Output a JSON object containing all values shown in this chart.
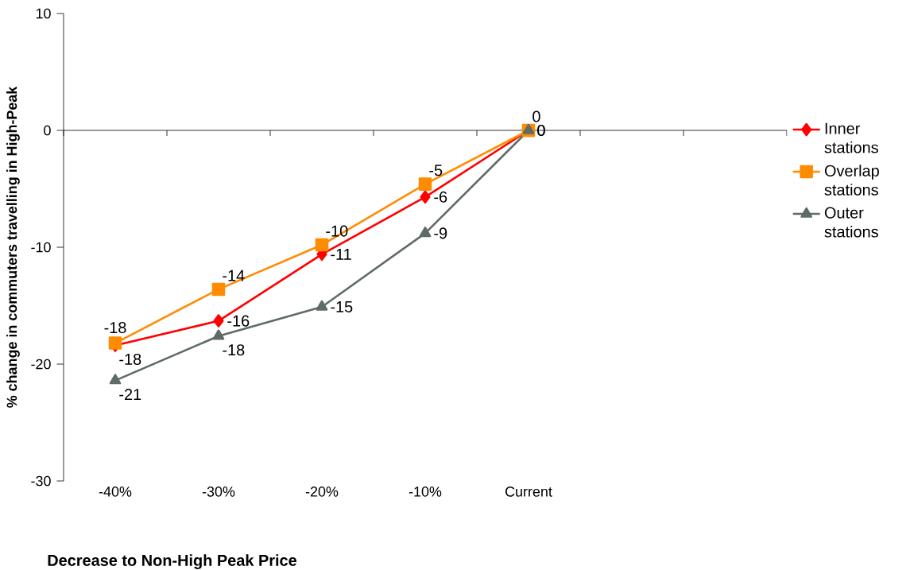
{
  "chart_data": {
    "type": "line",
    "xlabel": "Decrease to Non-High Peak Price",
    "ylabel": "% change in commuters travelling in High-Peak",
    "categories": [
      "-40%",
      "-30%",
      "-20%",
      "-10%",
      "Current",
      null,
      null
    ],
    "series": [
      {
        "name": "Inner stations",
        "color": "#ff0000",
        "marker": "diamond",
        "values": [
          -18.4,
          -16.3,
          -10.6,
          -5.7,
          0,
          null,
          null
        ],
        "value_labels": [
          "-18",
          "-16",
          "-11",
          "-6",
          "0",
          null,
          null
        ]
      },
      {
        "name": "Overlap stations",
        "color": "#ff8c00",
        "marker": "square",
        "values": [
          -18.2,
          -13.6,
          -9.8,
          -4.6,
          0,
          null,
          null
        ],
        "value_labels": [
          "-18",
          "-14",
          "-10",
          "-5",
          "0",
          null,
          null
        ]
      },
      {
        "name": "Outer stations",
        "color": "#5f6b67",
        "marker": "triangle",
        "values": [
          -21.4,
          -17.6,
          -15.1,
          -8.8,
          0,
          null,
          null
        ],
        "value_labels": [
          "-21",
          "-18",
          "-15",
          "-9",
          "0",
          null,
          null
        ]
      }
    ],
    "ylim": [
      -30,
      10
    ],
    "yticks": [
      -30,
      -20,
      -10,
      0,
      10
    ],
    "grid": false,
    "ref_lines": [
      {
        "axis": "y",
        "value": 0,
        "color": "#000000"
      }
    ],
    "legend": "right",
    "line_style": "solid"
  }
}
